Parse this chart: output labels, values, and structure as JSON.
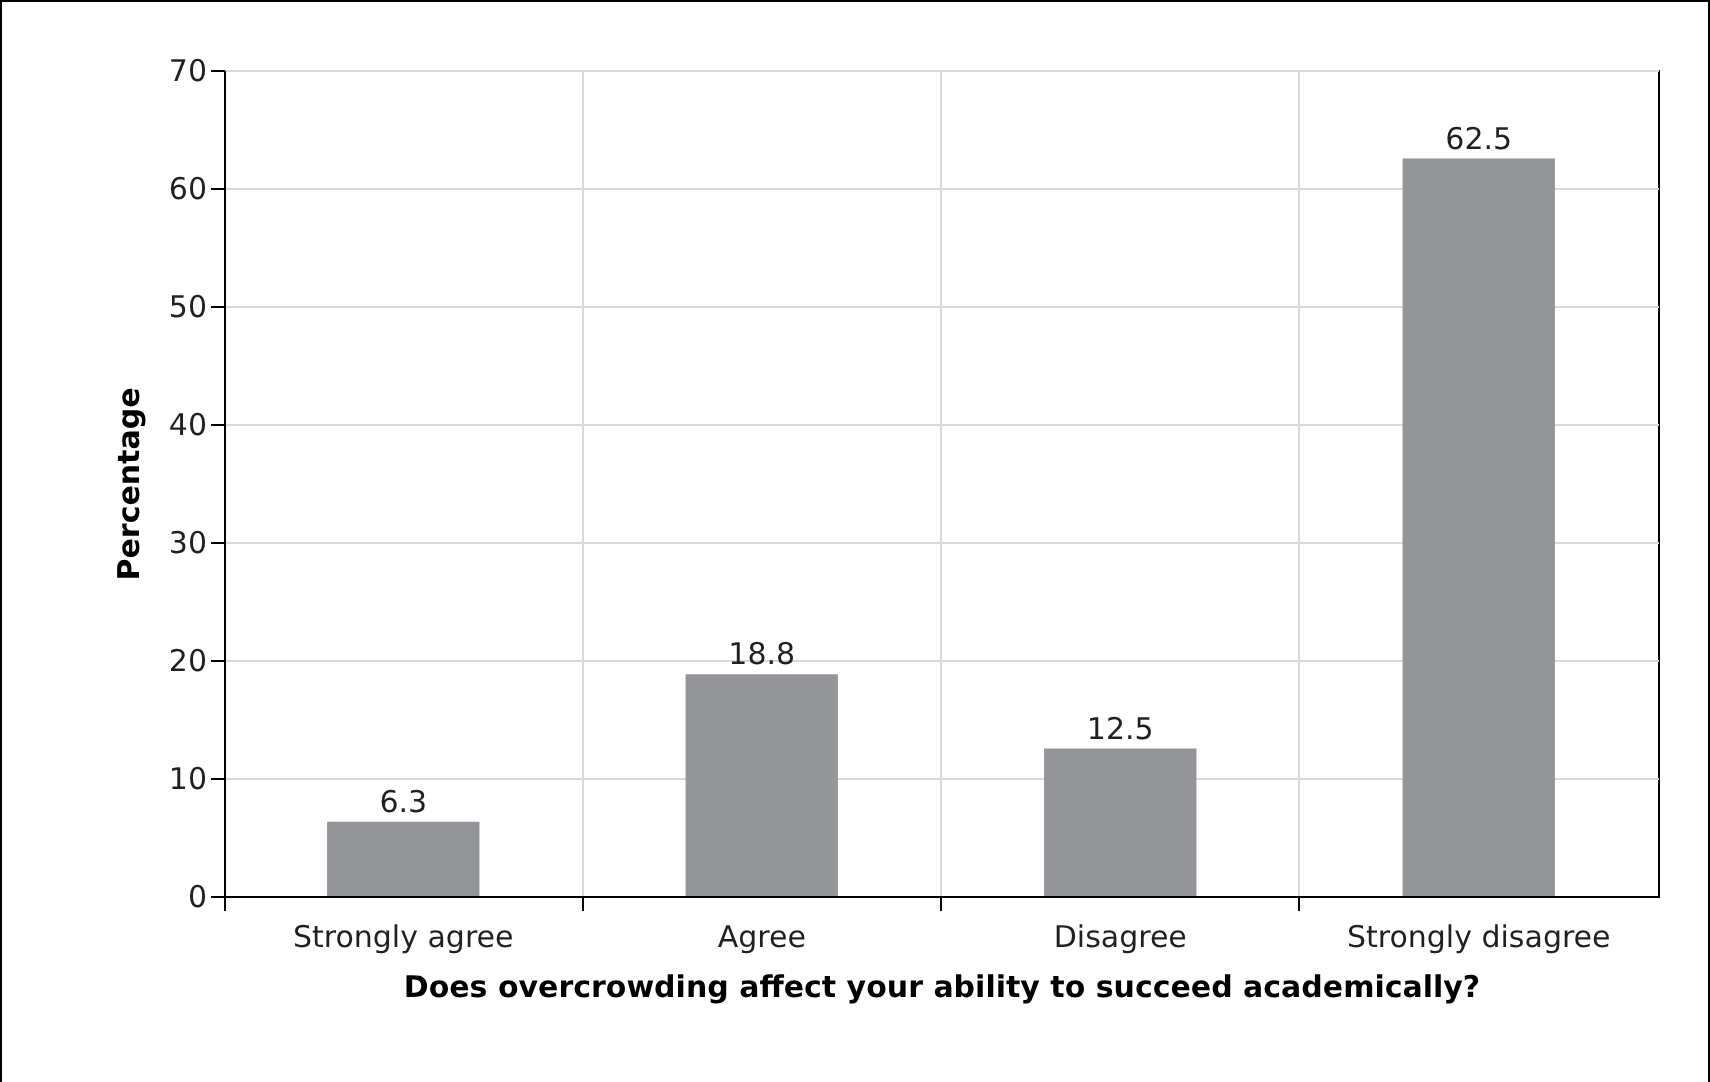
{
  "chart_data": {
    "type": "bar",
    "xlabel": "Does overcrowding affect your ability to succeed academically?",
    "ylabel": "Percentage",
    "categories": [
      "Strongly agree",
      "Agree",
      "Disagree",
      "Strongly disagree"
    ],
    "values": [
      6.3,
      18.8,
      12.5,
      62.5
    ],
    "color": "#939598",
    "ylim": [
      0,
      70
    ],
    "yticks": [
      0,
      10,
      20,
      30,
      40,
      50,
      60,
      70
    ],
    "grid": true,
    "data_labels": true
  }
}
